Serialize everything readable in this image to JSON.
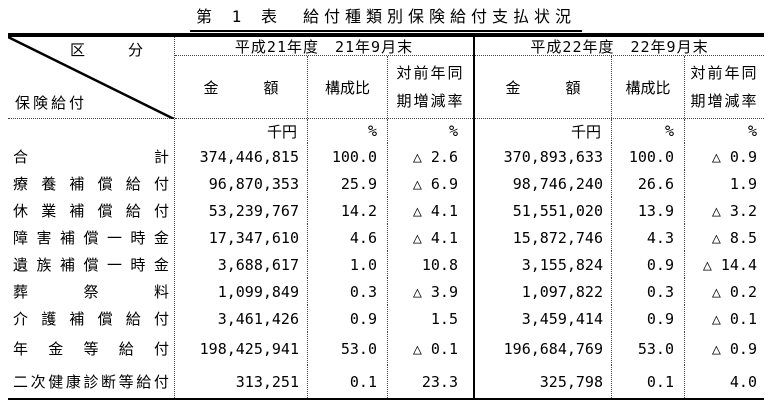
{
  "title": "第 1 表　給付種類別保険給付支払状況",
  "table": {
    "corner": {
      "top_label": "区　分",
      "bottom_label": "保険給付"
    },
    "groups": [
      {
        "period": "平成21年度　21年9月末"
      },
      {
        "period": "平成22年度　22年9月末"
      }
    ],
    "columns": {
      "amount": "金　　　額",
      "composition": "構成比",
      "yoy_line1": "対前年同",
      "yoy_line2": "期増減率"
    },
    "units": {
      "amount": "千円",
      "pct": "%"
    },
    "negative_mark": "△",
    "rows": [
      {
        "label": "合計",
        "cells": [
          "374,446,815",
          "100.0",
          "△ 2.6",
          "370,893,633",
          "100.0",
          "△ 0.9"
        ]
      },
      {
        "label": "療養補償給付",
        "cells": [
          "96,870,353",
          "25.9",
          "△ 6.9",
          "98,746,240",
          "26.6",
          "1.9"
        ]
      },
      {
        "label": "休業補償給付",
        "cells": [
          "53,239,767",
          "14.2",
          "△ 4.1",
          "51,551,020",
          "13.9",
          "△ 3.2"
        ]
      },
      {
        "label": "障害補償一時金",
        "cells": [
          "17,347,610",
          "4.6",
          "△ 4.1",
          "15,872,746",
          "4.3",
          "△ 8.5"
        ]
      },
      {
        "label": "遺族補償一時金",
        "cells": [
          "3,688,617",
          "1.0",
          "10.8",
          "3,155,824",
          "0.9",
          "△ 14.4"
        ]
      },
      {
        "label": "葬祭料",
        "cells": [
          "1,099,849",
          "0.3",
          "△ 3.9",
          "1,097,822",
          "0.3",
          "△ 0.2"
        ]
      },
      {
        "label": "介護補償給付",
        "cells": [
          "3,461,426",
          "0.9",
          "1.5",
          "3,459,414",
          "0.9",
          "△ 0.1"
        ]
      },
      {
        "label": "年金等給付",
        "spacer": true,
        "cells": [
          "198,425,941",
          "53.0",
          "△ 0.1",
          "196,684,769",
          "53.0",
          "△ 0.9"
        ]
      },
      {
        "label": "二次健康診断等給付",
        "spacer": true,
        "cells": [
          "313,251",
          "0.1",
          "23.3",
          "325,798",
          "0.1",
          "4.0"
        ]
      }
    ]
  }
}
